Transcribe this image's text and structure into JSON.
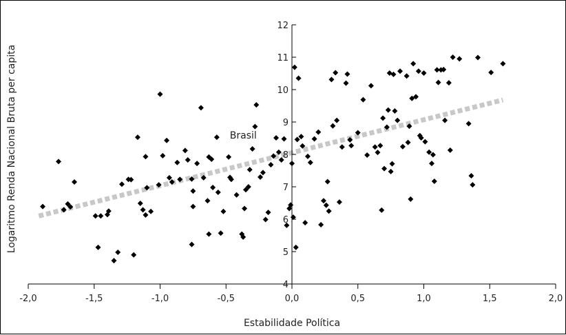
{
  "chart_data": {
    "type": "scatter",
    "title": "",
    "xlabel": "Estabilidade Política",
    "ylabel": "Logaritmo Renda Nacional Bruta per capita",
    "xlim": [
      -2.0,
      2.0
    ],
    "ylim": [
      4,
      12
    ],
    "x_ticks": [
      "-2,0",
      "-1,5",
      "-1,0",
      "-0,5",
      "0,0",
      "0,5",
      "1,0",
      "1,5",
      "2,0"
    ],
    "y_ticks": [
      "4",
      "5",
      "6",
      "7",
      "8",
      "9",
      "10",
      "11",
      "12"
    ],
    "grid": false,
    "legend": "none",
    "colors": {
      "points": "#000000",
      "trend": "#c8c8c8"
    },
    "annotations": [
      {
        "text": "Brasil",
        "x": -0.33,
        "y": 8.6
      }
    ],
    "trendline": {
      "x": [
        -1.92,
        1.6
      ],
      "y": [
        6.1,
        9.68
      ],
      "style": "dashed"
    },
    "series": [
      {
        "points": [
          [
            -1.89,
            6.39
          ],
          [
            -1.77,
            7.78
          ],
          [
            -1.73,
            6.29
          ],
          [
            -1.7,
            6.47
          ],
          [
            -1.68,
            6.38
          ],
          [
            -1.65,
            7.15
          ],
          [
            -1.49,
            6.1
          ],
          [
            -1.47,
            5.13
          ],
          [
            -1.45,
            6.1
          ],
          [
            -1.4,
            6.14
          ],
          [
            -1.39,
            6.25
          ],
          [
            -1.35,
            4.72
          ],
          [
            -1.32,
            4.98
          ],
          [
            -1.29,
            7.08
          ],
          [
            -1.24,
            7.23
          ],
          [
            -1.22,
            7.22
          ],
          [
            -1.2,
            4.9
          ],
          [
            -1.17,
            8.53
          ],
          [
            -1.15,
            6.49
          ],
          [
            -1.13,
            6.29
          ],
          [
            -1.11,
            7.93
          ],
          [
            -1.11,
            6.13
          ],
          [
            -1.1,
            6.97
          ],
          [
            -1.07,
            6.24
          ],
          [
            -1.01,
            7.06
          ],
          [
            -1.0,
            9.86
          ],
          [
            -0.98,
            7.96
          ],
          [
            -0.95,
            8.43
          ],
          [
            -0.93,
            7.28
          ],
          [
            -0.91,
            7.15
          ],
          [
            -0.87,
            7.75
          ],
          [
            -0.85,
            7.23
          ],
          [
            -0.81,
            8.12
          ],
          [
            -0.79,
            7.83
          ],
          [
            -0.76,
            7.24
          ],
          [
            -0.76,
            5.22
          ],
          [
            -0.75,
            6.87
          ],
          [
            -0.75,
            6.39
          ],
          [
            -0.72,
            7.72
          ],
          [
            -0.69,
            9.44
          ],
          [
            -0.67,
            7.28
          ],
          [
            -0.64,
            6.57
          ],
          [
            -0.63,
            5.54
          ],
          [
            -0.63,
            7.92
          ],
          [
            -0.61,
            7.85
          ],
          [
            -0.6,
            6.98
          ],
          [
            -0.57,
            8.53
          ],
          [
            -0.56,
            6.83
          ],
          [
            -0.54,
            5.57
          ],
          [
            -0.52,
            6.24
          ],
          [
            -0.48,
            7.92
          ],
          [
            -0.47,
            7.29
          ],
          [
            -0.46,
            7.23
          ],
          [
            -0.42,
            6.75
          ],
          [
            -0.38,
            5.54
          ],
          [
            -0.37,
            5.45
          ],
          [
            -0.36,
            6.33
          ],
          [
            -0.35,
            6.91
          ],
          [
            -0.33,
            7.0
          ],
          [
            -0.32,
            7.53
          ],
          [
            -0.3,
            8.17
          ],
          [
            -0.28,
            8.86
          ],
          [
            -0.27,
            9.53
          ],
          [
            -0.24,
            7.3
          ],
          [
            -0.22,
            7.44
          ],
          [
            -0.2,
            5.99
          ],
          [
            -0.18,
            6.21
          ],
          [
            -0.16,
            7.68
          ],
          [
            -0.14,
            7.95
          ],
          [
            -0.12,
            8.51
          ],
          [
            -0.1,
            8.07
          ],
          [
            -0.08,
            7.83
          ],
          [
            -0.06,
            8.48
          ],
          [
            -0.04,
            5.81
          ],
          [
            -0.02,
            6.33
          ],
          [
            -0.01,
            6.44
          ],
          [
            0.0,
            7.72
          ],
          [
            0.01,
            6.06
          ],
          [
            0.02,
            10.69
          ],
          [
            0.03,
            5.13
          ],
          [
            0.04,
            8.46
          ],
          [
            0.05,
            10.35
          ],
          [
            0.07,
            8.55
          ],
          [
            0.08,
            8.26
          ],
          [
            0.1,
            5.89
          ],
          [
            0.12,
            7.94
          ],
          [
            0.14,
            7.75
          ],
          [
            0.17,
            8.48
          ],
          [
            0.2,
            8.69
          ],
          [
            0.22,
            5.83
          ],
          [
            0.24,
            6.57
          ],
          [
            0.26,
            6.43
          ],
          [
            0.27,
            7.16
          ],
          [
            0.28,
            6.25
          ],
          [
            0.3,
            10.31
          ],
          [
            0.31,
            8.88
          ],
          [
            0.33,
            10.52
          ],
          [
            0.34,
            9.05
          ],
          [
            0.36,
            6.53
          ],
          [
            0.38,
            8.23
          ],
          [
            0.41,
            10.2
          ],
          [
            0.42,
            10.48
          ],
          [
            0.44,
            8.45
          ],
          [
            0.45,
            8.27
          ],
          [
            0.5,
            8.67
          ],
          [
            0.54,
            9.69
          ],
          [
            0.57,
            7.98
          ],
          [
            0.6,
            10.12
          ],
          [
            0.63,
            8.23
          ],
          [
            0.65,
            8.06
          ],
          [
            0.67,
            8.27
          ],
          [
            0.68,
            6.28
          ],
          [
            0.69,
            9.12
          ],
          [
            0.7,
            7.56
          ],
          [
            0.72,
            8.84
          ],
          [
            0.73,
            9.37
          ],
          [
            0.74,
            10.51
          ],
          [
            0.75,
            7.47
          ],
          [
            0.76,
            7.71
          ],
          [
            0.77,
            10.47
          ],
          [
            0.78,
            9.34
          ],
          [
            0.8,
            9.05
          ],
          [
            0.82,
            10.57
          ],
          [
            0.84,
            8.24
          ],
          [
            0.87,
            10.42
          ],
          [
            0.88,
            8.37
          ],
          [
            0.89,
            8.87
          ],
          [
            0.9,
            6.62
          ],
          [
            0.91,
            9.73
          ],
          [
            0.92,
            10.8
          ],
          [
            0.94,
            9.78
          ],
          [
            0.96,
            10.57
          ],
          [
            0.97,
            8.58
          ],
          [
            0.98,
            8.51
          ],
          [
            1.0,
            10.51
          ],
          [
            1.01,
            8.39
          ],
          [
            1.04,
            8.07
          ],
          [
            1.06,
            7.72
          ],
          [
            1.07,
            7.99
          ],
          [
            1.08,
            7.17
          ],
          [
            1.1,
            10.61
          ],
          [
            1.11,
            10.22
          ],
          [
            1.13,
            10.61
          ],
          [
            1.15,
            10.62
          ],
          [
            1.16,
            9.05
          ],
          [
            1.19,
            10.21
          ],
          [
            1.2,
            8.13
          ],
          [
            1.22,
            11.0
          ],
          [
            1.27,
            10.95
          ],
          [
            1.34,
            8.95
          ],
          [
            1.36,
            7.34
          ],
          [
            1.37,
            7.06
          ],
          [
            1.41,
            10.99
          ],
          [
            1.51,
            10.53
          ],
          [
            1.6,
            10.8
          ]
        ]
      }
    ]
  }
}
